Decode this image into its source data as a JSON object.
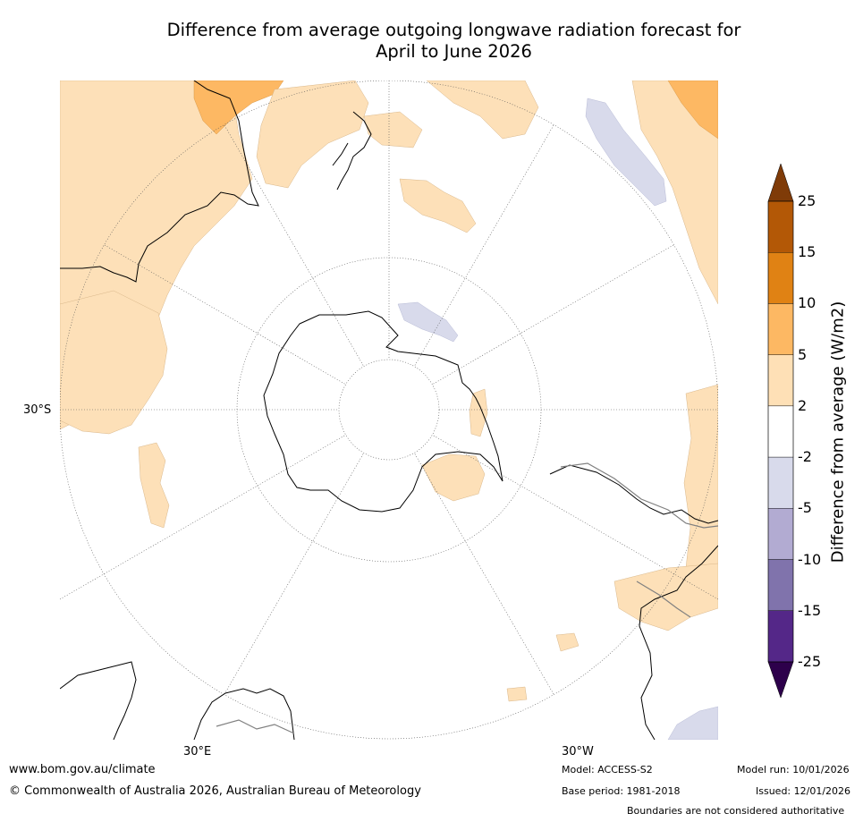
{
  "title_line1": "Difference from average outgoing longwave radiation forecast for",
  "title_line2": "April to June 2026",
  "map": {
    "lat_label": "30°S",
    "lon_label_left": "30°E",
    "lon_label_right": "30°W",
    "colors": {
      "pos_2_5": "#fde0b8",
      "pos_5_10": "#fdb863",
      "neg_2_5": "#d8daeb",
      "land_border": "#000000",
      "state_border": "#808080"
    }
  },
  "colorbar": {
    "title": "Difference from average (W/m2)",
    "ticks": [
      "25",
      "15",
      "10",
      "5",
      "2",
      "-2",
      "-5",
      "-10",
      "-15",
      "-25"
    ],
    "colors": [
      "#b35806",
      "#e08214",
      "#fdb863",
      "#fee0b6",
      "#ffffff",
      "#d8daeb",
      "#b2abd2",
      "#8073ac",
      "#542788"
    ],
    "extend_max_color": "#7f3b08",
    "extend_min_color": "#2d004b"
  },
  "footer": {
    "website": "www.bom.gov.au/climate",
    "copyright": "© Commonwealth of Australia 2026, Australian Bureau of Meteorology",
    "model": "Model: ACCESS-S2",
    "base_period": "Base period: 1981-2018",
    "model_run": "Model run: 10/01/2026",
    "issued": "Issued: 12/01/2026",
    "boundaries": "Boundaries are not considered authoritative"
  }
}
